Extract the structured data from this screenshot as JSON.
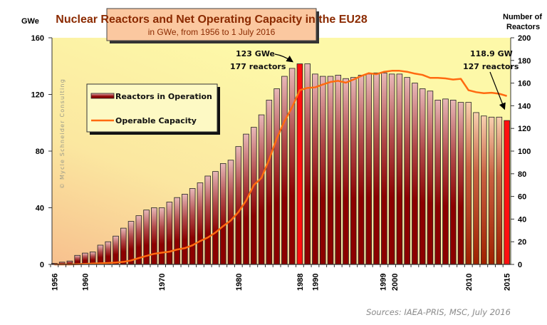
{
  "chart_data": {
    "type": "bar+line",
    "title": "Nuclear Reactors and Net Operating Capacity in the EU28",
    "subtitle": "in GWe, from 1956 to 1 July 2016",
    "ylabel_left": "GWe",
    "ylabel_right": "Number of Reactors",
    "ylim_left": [
      0,
      160
    ],
    "ylim_right": [
      0,
      200
    ],
    "yticks_left": [
      "0",
      "40",
      "80",
      "120",
      "160"
    ],
    "yticks_right": [
      "0",
      "20",
      "40",
      "60",
      "80",
      "100",
      "120",
      "140",
      "160",
      "180",
      "200"
    ],
    "xtick_labels": [
      "1956",
      "1960",
      "1970",
      "1980",
      "1988",
      "1990",
      "1999",
      "2000",
      "2010",
      "2015"
    ],
    "grid": false,
    "legend_position": "upper-left",
    "watermark": "© Mycle Schneider Consulting",
    "source": "Sources: IAEA-PRIS, MSC, July 2016",
    "x": [
      1956,
      1957,
      1958,
      1959,
      1960,
      1961,
      1962,
      1963,
      1964,
      1965,
      1966,
      1967,
      1968,
      1969,
      1970,
      1971,
      1972,
      1973,
      1974,
      1975,
      1976,
      1977,
      1978,
      1979,
      1980,
      1981,
      1982,
      1983,
      1984,
      1985,
      1986,
      1987,
      1988,
      1989,
      1990,
      1991,
      1992,
      1993,
      1994,
      1995,
      1996,
      1997,
      1998,
      1999,
      2000,
      2001,
      2002,
      2003,
      2004,
      2005,
      2006,
      2007,
      2008,
      2009,
      2010,
      2011,
      2012,
      2013,
      2014,
      2015
    ],
    "series": [
      {
        "name": "Reactors in Operation",
        "type": "bar",
        "axis": "right",
        "color": "#8b0000",
        "highlight_color": "#ff1010",
        "highlight_years": [
          1988,
          2015
        ],
        "values": [
          1,
          2,
          3,
          8,
          10,
          11,
          17,
          20,
          25,
          32,
          38,
          43,
          48,
          50,
          50,
          55,
          59,
          62,
          67,
          72,
          78,
          82,
          89,
          92,
          104,
          115,
          121,
          132,
          145,
          155,
          166,
          173,
          177,
          177,
          168,
          166,
          166,
          167,
          164,
          165,
          167,
          168,
          169,
          169,
          168,
          168,
          165,
          160,
          155,
          153,
          145,
          146,
          145,
          143,
          143,
          134,
          131,
          130,
          130,
          127
        ]
      },
      {
        "name": "Operable Capacity",
        "type": "line",
        "axis": "left",
        "color": "#ff6a10",
        "values": [
          0,
          0,
          0,
          0.2,
          0.4,
          0.6,
          0.8,
          1,
          1.3,
          1.8,
          2.8,
          4.5,
          6,
          7.5,
          8.3,
          9,
          10.5,
          11.5,
          13.5,
          16.5,
          19,
          22.5,
          27,
          31,
          37,
          45,
          56,
          61,
          74,
          89,
          101,
          111,
          123,
          124.6,
          125,
          127,
          128.8,
          129.6,
          128.3,
          130.5,
          133,
          135,
          134.3,
          136,
          136.7,
          136.7,
          136,
          134.7,
          133.8,
          131.7,
          131.7,
          131.3,
          130.5,
          131,
          123,
          121.6,
          120.9,
          121.2,
          120.5,
          118.9
        ]
      }
    ],
    "annotations": [
      {
        "year": 1988,
        "lines": [
          "123 GWe",
          "177 reactors"
        ]
      },
      {
        "year": 2015,
        "lines": [
          "118.9 GW",
          "127 reactors"
        ]
      }
    ]
  }
}
